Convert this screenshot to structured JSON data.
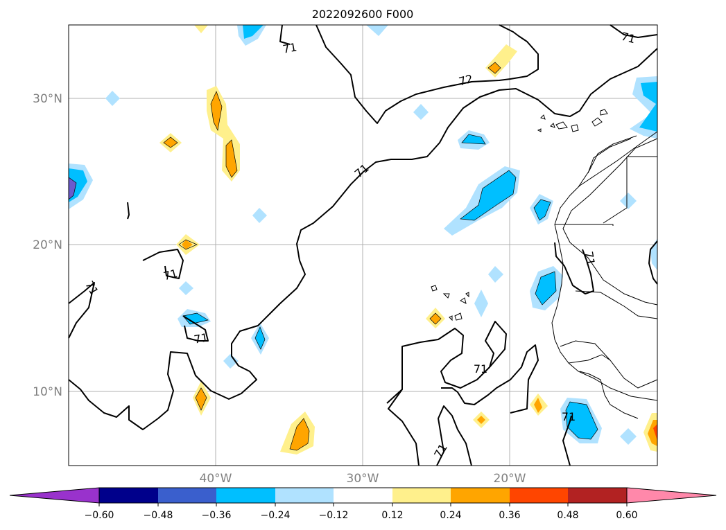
{
  "title": "2022092600 F000",
  "map": {
    "lat_labels": [
      "30°N",
      "20°N",
      "10°N"
    ],
    "lon_labels": [
      "40°W",
      "30°W",
      "20°W"
    ],
    "contour_labels": [
      "71",
      "71",
      "72",
      "71",
      "71",
      "71",
      "71",
      "71",
      "71",
      "71",
      "71"
    ]
  },
  "colorbar": {
    "colors": [
      "#9932cc",
      "#00008b",
      "#3a5fcd",
      "#00bfff",
      "#b0e2ff",
      "#ffffff",
      "#fff08c",
      "#ffa500",
      "#ff4500",
      "#b22222",
      "#ff88aa"
    ],
    "tick_labels": [
      "−0.60",
      "−0.48",
      "−0.36",
      "−0.24",
      "−0.12",
      "0.12",
      "0.24",
      "0.36",
      "0.48",
      "0.60"
    ]
  }
}
